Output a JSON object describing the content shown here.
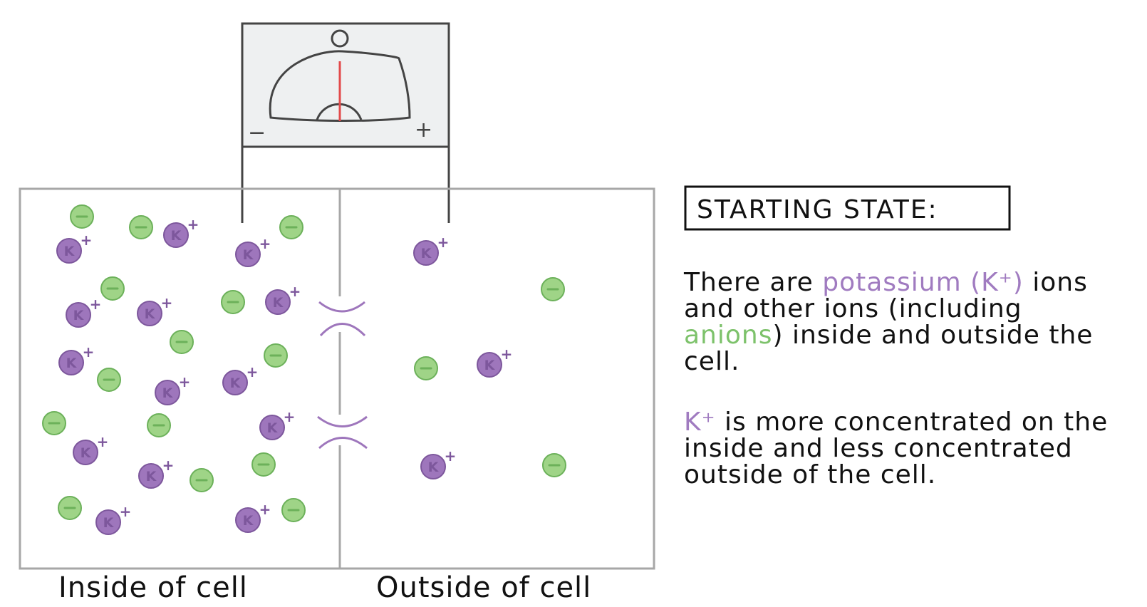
{
  "colors": {
    "potassium": "#9e76bc",
    "potassium_dark": "#7d579c",
    "anion": "#9fd487",
    "anion_dark": "#6cb15a",
    "box": "#a7a7a7",
    "meter_bg": "#eef0f1",
    "needle": "#e24a4a"
  },
  "meter": {
    "minus": "−",
    "plus": "+"
  },
  "labels": {
    "inside": "Inside of cell",
    "outside": "Outside of cell",
    "title": "STARTING STATE:"
  },
  "ion_symbols": {
    "potassium": "K",
    "charge": "+"
  },
  "text": {
    "p1_a": "There are ",
    "p1_k": "potassium (K⁺)",
    "p1_b": " ions and other ions (including ",
    "p1_anion": "anions",
    "p1_c": ") inside and outside the cell.",
    "p2_k": "K⁺",
    "p2_b": " is more concentrated on the inside and less concentrated outside of the cell."
  }
}
